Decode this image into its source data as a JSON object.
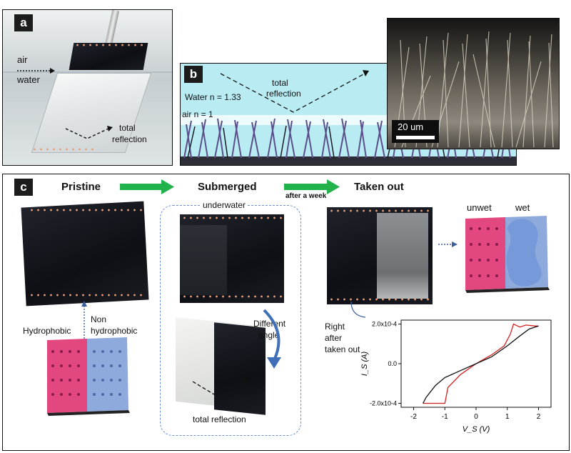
{
  "panel_a": {
    "tag": "a",
    "label_air": "air",
    "label_water": "water",
    "label_total": "total",
    "label_reflection": "reflection"
  },
  "panel_b": {
    "tag": "b",
    "label_water_n": "Water n = 1.33",
    "label_air_n": "air n = 1",
    "label_total": "total",
    "label_reflection": "reflection",
    "scale_bar": "20 um"
  },
  "panel_c": {
    "tag": "c",
    "pristine": "Pristine",
    "submerged": "Submerged",
    "after_week": "after a week",
    "taken_out": "Taken out",
    "underwater": "underwater",
    "hydrophobic": "Hydrophobic",
    "non": "Non",
    "non_hydrophobic": "hydrophobic",
    "different": "Different",
    "angle": "angle",
    "total_reflection": "total reflection",
    "unwet": "unwet",
    "wet": "wet",
    "right": "Right",
    "after": "after",
    "taken_out_note": "taken out",
    "colors": {
      "arrow_green": "#21b24b",
      "pink": "#e2477f",
      "blue": "#8ea9db",
      "dashed_blue": "#6b8fd1"
    }
  },
  "chart_data": {
    "type": "line",
    "xlabel": "V_S (V)",
    "ylabel": "I_S (A)",
    "xlim": [
      -2.4,
      2.4
    ],
    "ylim": [
      -0.00022,
      0.00022
    ],
    "xticks": [
      "-2",
      "-1",
      "0",
      "1",
      "2"
    ],
    "yticks": [
      "-2.0x10-4",
      "0.0",
      "2.0x10-4"
    ],
    "series": [
      {
        "color": "#d41f1f",
        "x": [
          -1.7,
          -1.0,
          -0.9,
          -0.5,
          0,
          0.5,
          0.9,
          1.1,
          1.2,
          1.4,
          1.6,
          1.9,
          2.0
        ],
        "y": [
          -0.0002,
          -0.0002,
          -0.00012,
          -5.5e-05,
          0,
          4.5e-05,
          9e-05,
          0.00015,
          0.0002,
          0.000185,
          0.000195,
          0.00019,
          0.00019
        ]
      },
      {
        "color": "#111111",
        "x": [
          2.0,
          1.7,
          1.4,
          1.0,
          0.5,
          0,
          -0.5,
          -1.0,
          -1.3,
          -1.6,
          -1.7
        ],
        "y": [
          0.00019,
          0.000175,
          0.00014,
          9e-05,
          3.5e-05,
          0,
          -3.5e-05,
          -7e-05,
          -0.00011,
          -0.00017,
          -0.0002
        ]
      }
    ]
  }
}
